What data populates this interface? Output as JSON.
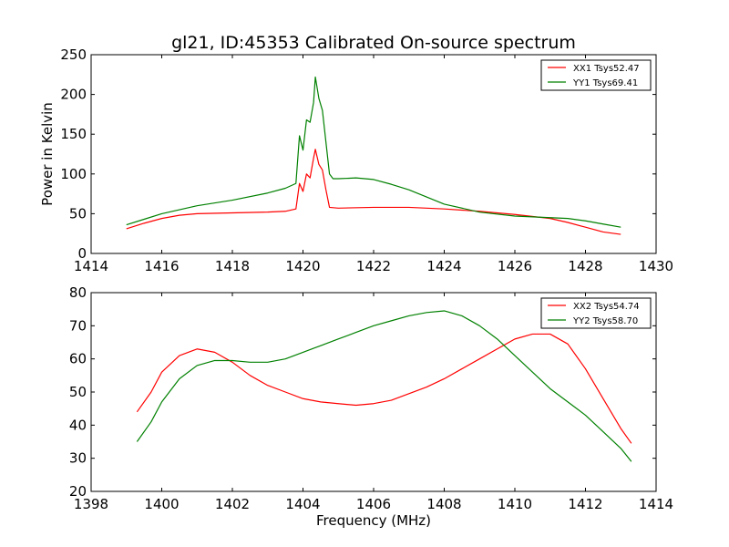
{
  "figure": {
    "title": "gl21, ID:45353 Calibrated On-source spectrum"
  },
  "chart_data": [
    {
      "type": "line",
      "title": "gl21, ID:45353 Calibrated On-source spectrum",
      "xlabel": "",
      "ylabel": "Power in Kelvin",
      "xlim": [
        1414,
        1430
      ],
      "ylim": [
        0,
        250
      ],
      "xticks": [
        1414,
        1416,
        1418,
        1420,
        1422,
        1424,
        1426,
        1428,
        1430
      ],
      "yticks": [
        0,
        50,
        100,
        150,
        200,
        250
      ],
      "legend_position": "top-right",
      "series": [
        {
          "name": "XX1 Tsys52.47",
          "color": "#ff0000",
          "x": [
            1415.0,
            1415.5,
            1416.0,
            1416.5,
            1417.0,
            1418.0,
            1419.0,
            1419.5,
            1419.8,
            1419.9,
            1420.0,
            1420.1,
            1420.2,
            1420.3,
            1420.35,
            1420.45,
            1420.55,
            1420.65,
            1420.75,
            1421.0,
            1422.0,
            1423.0,
            1424.0,
            1425.0,
            1426.0,
            1427.0,
            1427.5,
            1428.0,
            1428.5,
            1429.0
          ],
          "y": [
            31,
            38,
            44,
            48,
            50,
            51,
            52,
            53,
            56,
            88,
            78,
            100,
            95,
            120,
            131,
            112,
            105,
            80,
            58,
            57,
            58,
            58,
            56,
            53,
            49,
            44,
            39,
            33,
            27,
            24
          ]
        },
        {
          "name": "YY1 Tsys69.41",
          "color": "#008000",
          "x": [
            1415.0,
            1415.5,
            1416.0,
            1416.5,
            1417.0,
            1418.0,
            1419.0,
            1419.5,
            1419.8,
            1419.9,
            1420.0,
            1420.1,
            1420.2,
            1420.3,
            1420.35,
            1420.45,
            1420.55,
            1420.65,
            1420.75,
            1420.85,
            1421.0,
            1421.5,
            1422.0,
            1422.5,
            1423.0,
            1424.0,
            1425.0,
            1426.0,
            1427.0,
            1427.5,
            1428.0,
            1428.5,
            1429.0
          ],
          "y": [
            36,
            43,
            50,
            55,
            60,
            67,
            76,
            82,
            88,
            148,
            130,
            168,
            165,
            190,
            222,
            195,
            180,
            140,
            100,
            94,
            94,
            95,
            93,
            87,
            80,
            62,
            52,
            47,
            45,
            44,
            41,
            37,
            33
          ]
        }
      ]
    },
    {
      "type": "line",
      "title": "",
      "xlabel": "Frequency (MHz)",
      "ylabel": "",
      "xlim": [
        1398,
        1414
      ],
      "ylim": [
        20,
        80
      ],
      "xticks": [
        1398,
        1400,
        1402,
        1404,
        1406,
        1408,
        1410,
        1412,
        1414
      ],
      "yticks": [
        20,
        30,
        40,
        50,
        60,
        70,
        80
      ],
      "legend_position": "top-right",
      "series": [
        {
          "name": "XX2 Tsys54.74",
          "color": "#ff0000",
          "x": [
            1399.3,
            1399.7,
            1400.0,
            1400.5,
            1401.0,
            1401.5,
            1402.0,
            1402.5,
            1403.0,
            1403.5,
            1404.0,
            1404.5,
            1405.0,
            1405.5,
            1406.0,
            1406.5,
            1407.0,
            1407.5,
            1408.0,
            1408.5,
            1409.0,
            1409.5,
            1410.0,
            1410.5,
            1411.0,
            1411.5,
            1412.0,
            1412.5,
            1413.0,
            1413.3
          ],
          "y": [
            44,
            50,
            56,
            61,
            63,
            62,
            59,
            55,
            52,
            50,
            48,
            47,
            46.5,
            46,
            46.5,
            47.5,
            49.5,
            51.5,
            54,
            57,
            60,
            63,
            66,
            67.5,
            67.5,
            64.5,
            57,
            48,
            39,
            34.5
          ]
        },
        {
          "name": "YY2 Tsys58.70",
          "color": "#008000",
          "x": [
            1399.3,
            1399.7,
            1400.0,
            1400.5,
            1401.0,
            1401.5,
            1402.0,
            1402.5,
            1403.0,
            1403.5,
            1404.0,
            1404.5,
            1405.0,
            1405.5,
            1406.0,
            1406.5,
            1407.0,
            1407.5,
            1408.0,
            1408.5,
            1409.0,
            1409.5,
            1410.0,
            1410.5,
            1411.0,
            1411.5,
            1412.0,
            1412.5,
            1413.0,
            1413.3
          ],
          "y": [
            35,
            41,
            47,
            54,
            58,
            59.5,
            59.5,
            59,
            59,
            60,
            62,
            64,
            66,
            68,
            70,
            71.5,
            73,
            74,
            74.5,
            73,
            70,
            66,
            61,
            56,
            51,
            47,
            43,
            38,
            33,
            29
          ]
        }
      ]
    }
  ]
}
